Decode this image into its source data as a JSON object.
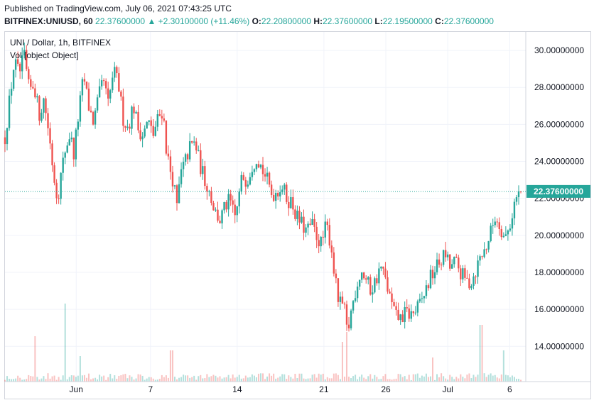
{
  "header": {
    "published": "Published on TradingView.com, July 06, 2021 07:43:25 UTC",
    "symbol": "BITFINEX:UNIUSD, 60",
    "last": "22.37600000",
    "change": "▲ +2.30100000 (+11.46%)",
    "open_label": "O:",
    "open": "22.20800000",
    "high_label": "H:",
    "high": "22.37600000",
    "low_label": "L:",
    "low": "22.19500000",
    "close_label": "C:",
    "close": "22.37600000"
  },
  "legend": {
    "title": "UNI / Dollar, 1h, BITFINEX",
    "volume": "Vol [object Object]"
  },
  "colors": {
    "up": "#26a69a",
    "down": "#ef5350",
    "grid": "#f0f3fa",
    "axis_text": "#131722",
    "price_tag": "#26a69a"
  },
  "chart_data": {
    "type": "candlestick",
    "timeframe": "1h",
    "y_ticks": [
      "30.00000000",
      "28.00000000",
      "26.00000000",
      "24.00000000",
      "22.00000000",
      "20.00000000",
      "18.00000000",
      "16.00000000",
      "14.00000000"
    ],
    "y_tick_values": [
      30,
      28,
      26,
      24,
      22,
      20,
      18,
      16,
      14
    ],
    "x_ticks": [
      "Jun",
      "7",
      "14",
      "21",
      "26",
      "Jul",
      "6"
    ],
    "x_tick_days": [
      0,
      6,
      13,
      20,
      25,
      30,
      35
    ],
    "ylim": [
      12.4,
      31.0
    ],
    "xlim_days": [
      -5.75,
      36.3
    ],
    "last_price": 22.376,
    "last_price_label": "22.37600000",
    "price_path": [
      [
        -5.75,
        25.3
      ],
      [
        -5.4,
        27.2
      ],
      [
        -5.0,
        29.4
      ],
      [
        -4.6,
        28.7
      ],
      [
        -4.2,
        29.7
      ],
      [
        -3.8,
        27.8
      ],
      [
        -3.4,
        28.2
      ],
      [
        -3.0,
        26.5
      ],
      [
        -2.6,
        27.4
      ],
      [
        -2.2,
        25.5
      ],
      [
        -1.8,
        23.2
      ],
      [
        -1.5,
        22.0
      ],
      [
        -1.2,
        23.4
      ],
      [
        -0.9,
        24.6
      ],
      [
        -0.5,
        25.5
      ],
      [
        -0.2,
        24.4
      ],
      [
        0.2,
        26.6
      ],
      [
        0.6,
        28.6
      ],
      [
        1.0,
        27.0
      ],
      [
        1.4,
        26.1
      ],
      [
        1.8,
        27.4
      ],
      [
        2.2,
        28.4
      ],
      [
        2.6,
        27.0
      ],
      [
        3.0,
        28.9
      ],
      [
        3.4,
        28.2
      ],
      [
        3.8,
        26.3
      ],
      [
        4.2,
        25.8
      ],
      [
        4.6,
        27.1
      ],
      [
        5.0,
        25.8
      ],
      [
        5.4,
        25.4
      ],
      [
        5.8,
        26.2
      ],
      [
        6.2,
        25.4
      ],
      [
        6.6,
        26.3
      ],
      [
        7.0,
        26.8
      ],
      [
        7.3,
        24.5
      ],
      [
        7.6,
        23.5
      ],
      [
        7.9,
        22.8
      ],
      [
        8.1,
        21.3
      ],
      [
        8.4,
        23.2
      ],
      [
        8.8,
        24.0
      ],
      [
        9.2,
        24.8
      ],
      [
        9.6,
        25.0
      ],
      [
        10.0,
        23.8
      ],
      [
        10.4,
        23.0
      ],
      [
        10.8,
        22.3
      ],
      [
        11.2,
        21.3
      ],
      [
        11.6,
        20.8
      ],
      [
        12.0,
        21.5
      ],
      [
        12.4,
        21.9
      ],
      [
        12.8,
        20.9
      ],
      [
        13.1,
        21.9
      ],
      [
        13.4,
        23.2
      ],
      [
        13.8,
        23.0
      ],
      [
        14.2,
        23.8
      ],
      [
        14.6,
        24.3
      ],
      [
        15.0,
        23.6
      ],
      [
        15.4,
        23.0
      ],
      [
        15.8,
        22.2
      ],
      [
        16.2,
        22.4
      ],
      [
        16.6,
        22.7
      ],
      [
        17.0,
        22.0
      ],
      [
        17.4,
        21.8
      ],
      [
        17.8,
        21.0
      ],
      [
        18.2,
        20.6
      ],
      [
        18.6,
        20.2
      ],
      [
        19.0,
        20.6
      ],
      [
        19.4,
        20.0
      ],
      [
        19.8,
        19.5
      ],
      [
        20.2,
        20.6
      ],
      [
        20.6,
        19.4
      ],
      [
        20.9,
        17.6
      ],
      [
        21.2,
        16.3
      ],
      [
        21.6,
        16.2
      ],
      [
        21.9,
        14.6
      ],
      [
        22.2,
        15.9
      ],
      [
        22.6,
        17.2
      ],
      [
        23.0,
        18.1
      ],
      [
        23.4,
        17.6
      ],
      [
        23.8,
        17.0
      ],
      [
        24.2,
        17.6
      ],
      [
        24.6,
        18.3
      ],
      [
        25.0,
        17.5
      ],
      [
        25.4,
        16.4
      ],
      [
        25.8,
        15.6
      ],
      [
        26.2,
        15.5
      ],
      [
        26.6,
        15.8
      ],
      [
        27.0,
        15.7
      ],
      [
        27.4,
        15.9
      ],
      [
        27.8,
        16.3
      ],
      [
        28.2,
        17.0
      ],
      [
        28.6,
        17.7
      ],
      [
        29.0,
        18.2
      ],
      [
        29.4,
        18.6
      ],
      [
        29.8,
        19.0
      ],
      [
        30.2,
        18.2
      ],
      [
        30.6,
        18.6
      ],
      [
        31.0,
        18.0
      ],
      [
        31.4,
        17.6
      ],
      [
        31.8,
        17.4
      ],
      [
        32.2,
        18.0
      ],
      [
        32.6,
        18.8
      ],
      [
        33.0,
        19.2
      ],
      [
        33.4,
        20.0
      ],
      [
        33.8,
        21.0
      ],
      [
        34.2,
        20.6
      ],
      [
        34.6,
        19.8
      ],
      [
        35.0,
        20.5
      ],
      [
        35.4,
        21.8
      ],
      [
        35.7,
        22.2
      ],
      [
        35.9,
        22.376
      ]
    ],
    "volume_spikes": [
      [
        -3.3,
        0.32
      ],
      [
        -0.9,
        0.55
      ],
      [
        0.3,
        0.18
      ],
      [
        7.7,
        0.22
      ],
      [
        21.5,
        0.28
      ],
      [
        21.9,
        0.35
      ],
      [
        28.8,
        0.17
      ],
      [
        32.7,
        0.4
      ],
      [
        34.5,
        0.22
      ]
    ]
  }
}
